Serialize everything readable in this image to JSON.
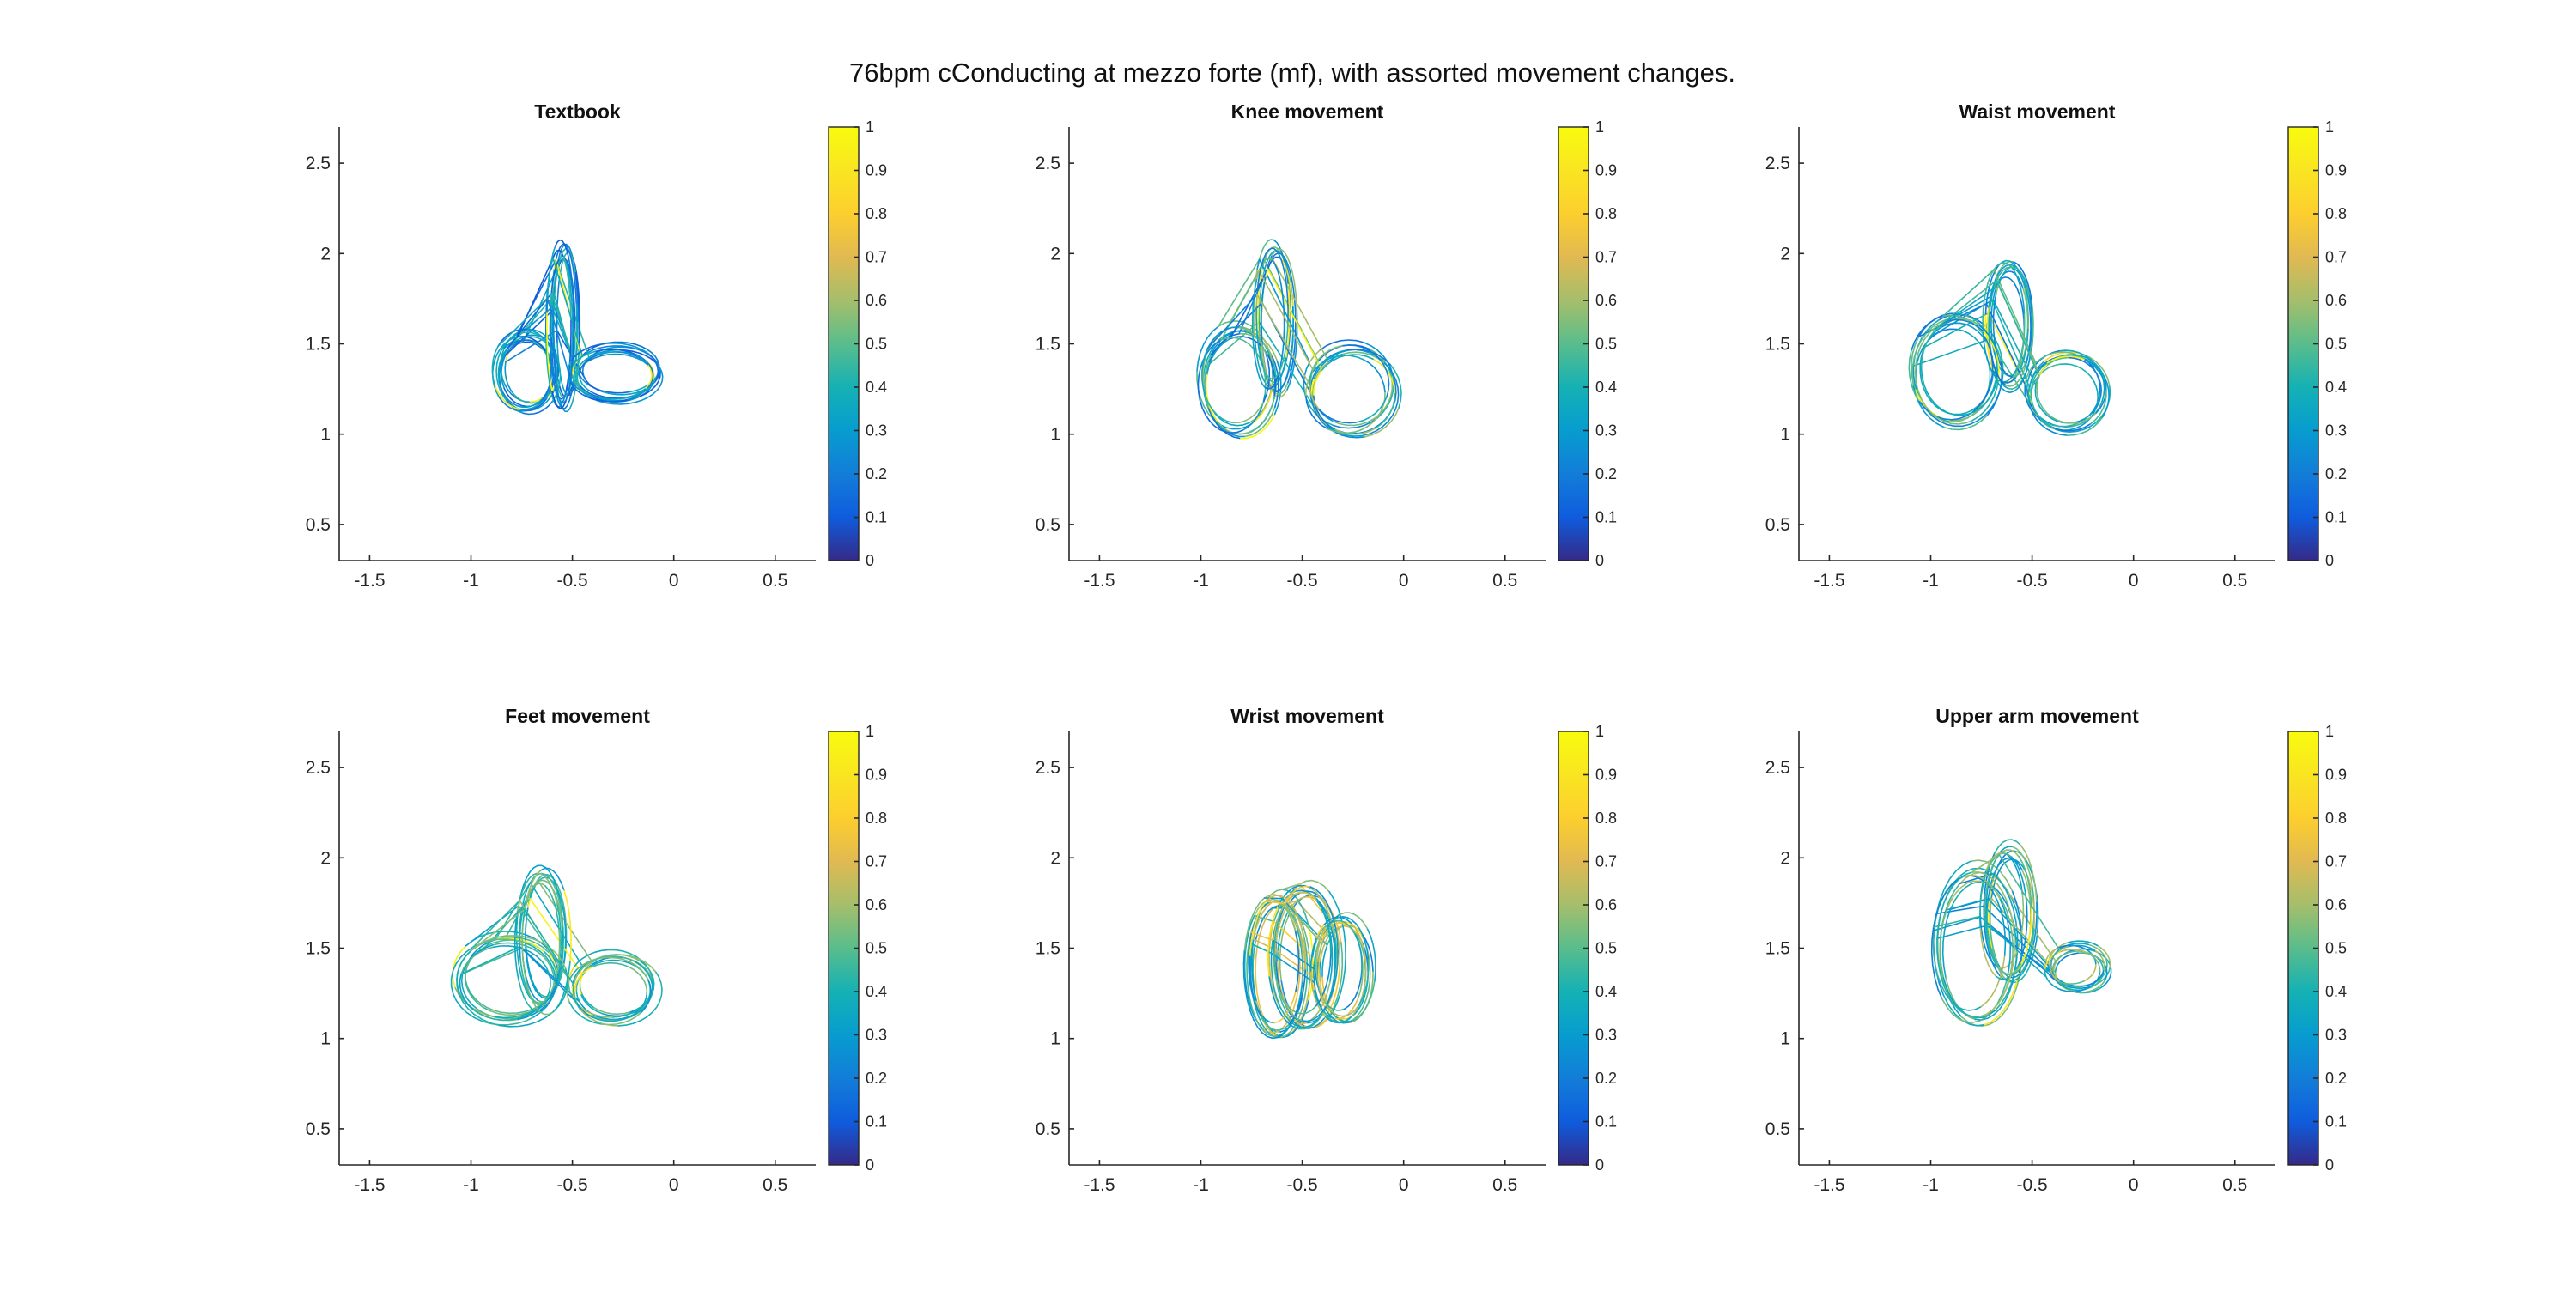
{
  "figure": {
    "suptitle": "76bpm cConducting at mezzo forte (mf), with assorted movement changes."
  },
  "chart_data": [
    {
      "type": "line",
      "title": "Textbook",
      "xlim": [
        -1.65,
        0.7
      ],
      "ylim": [
        0.3,
        2.7
      ],
      "xticks": [
        -1.5,
        -1,
        -0.5,
        0,
        0.5
      ],
      "yticks": [
        0.5,
        1,
        1.5,
        2,
        2.5
      ],
      "grid": false,
      "color_scale": {
        "colormap": "parula",
        "range": [
          0,
          1
        ],
        "ticks": [
          0,
          0.1,
          0.2,
          0.3,
          0.4,
          0.5,
          0.6,
          0.7,
          0.8,
          0.9,
          1
        ]
      },
      "trajectory": {
        "lobes": [
          {
            "cx": -0.72,
            "cy": 1.35,
            "rx": 0.14,
            "ry": 0.2
          },
          {
            "cx": -0.54,
            "cy": 1.6,
            "rx": 0.06,
            "ry": 0.42
          },
          {
            "cx": -0.28,
            "cy": 1.34,
            "rx": 0.2,
            "ry": 0.14
          }
        ],
        "loops": 9,
        "color_mean": 0.27,
        "color_spread": 0.18
      }
    },
    {
      "type": "line",
      "title": "Knee movement",
      "xlim": [
        -1.65,
        0.7
      ],
      "ylim": [
        0.3,
        2.7
      ],
      "xticks": [
        -1.5,
        -1,
        -0.5,
        0,
        0.5
      ],
      "yticks": [
        0.5,
        1,
        1.5,
        2,
        2.5
      ],
      "grid": false,
      "color_scale": {
        "colormap": "parula",
        "range": [
          0,
          1
        ],
        "ticks": [
          0,
          0.1,
          0.2,
          0.3,
          0.4,
          0.5,
          0.6,
          0.7,
          0.8,
          0.9,
          1
        ]
      },
      "trajectory": {
        "lobes": [
          {
            "cx": -0.82,
            "cy": 1.3,
            "rx": 0.17,
            "ry": 0.27
          },
          {
            "cx": -0.64,
            "cy": 1.64,
            "rx": 0.08,
            "ry": 0.37
          },
          {
            "cx": -0.26,
            "cy": 1.25,
            "rx": 0.2,
            "ry": 0.22
          }
        ],
        "loops": 8,
        "color_mean": 0.38,
        "color_spread": 0.24
      }
    },
    {
      "type": "line",
      "title": "Waist movement",
      "xlim": [
        -1.65,
        0.7
      ],
      "ylim": [
        0.3,
        2.7
      ],
      "xticks": [
        -1.5,
        -1,
        -0.5,
        0,
        0.5
      ],
      "yticks": [
        0.5,
        1,
        1.5,
        2,
        2.5
      ],
      "grid": false,
      "color_scale": {
        "colormap": "parula",
        "range": [
          0,
          1
        ],
        "ticks": [
          0,
          0.1,
          0.2,
          0.3,
          0.4,
          0.5,
          0.6,
          0.7,
          0.8,
          0.9,
          1
        ]
      },
      "trajectory": {
        "lobes": [
          {
            "cx": -0.88,
            "cy": 1.35,
            "rx": 0.2,
            "ry": 0.28
          },
          {
            "cx": -0.62,
            "cy": 1.6,
            "rx": 0.1,
            "ry": 0.32
          },
          {
            "cx": -0.33,
            "cy": 1.23,
            "rx": 0.18,
            "ry": 0.2
          }
        ],
        "loops": 8,
        "color_mean": 0.36,
        "color_spread": 0.2
      }
    },
    {
      "type": "line",
      "title": "Feet movement",
      "xlim": [
        -1.65,
        0.7
      ],
      "ylim": [
        0.3,
        2.7
      ],
      "xticks": [
        -1.5,
        -1,
        -0.5,
        0,
        0.5
      ],
      "yticks": [
        0.5,
        1,
        1.5,
        2,
        2.5
      ],
      "grid": false,
      "color_scale": {
        "colormap": "parula",
        "range": [
          0,
          1
        ],
        "ticks": [
          0,
          0.1,
          0.2,
          0.3,
          0.4,
          0.5,
          0.6,
          0.7,
          0.8,
          0.9,
          1
        ]
      },
      "trajectory": {
        "lobes": [
          {
            "cx": -0.82,
            "cy": 1.33,
            "rx": 0.25,
            "ry": 0.23
          },
          {
            "cx": -0.65,
            "cy": 1.55,
            "rx": 0.11,
            "ry": 0.37
          },
          {
            "cx": -0.3,
            "cy": 1.28,
            "rx": 0.2,
            "ry": 0.18
          }
        ],
        "loops": 8,
        "color_mean": 0.42,
        "color_spread": 0.16
      }
    },
    {
      "type": "line",
      "title": "Wrist movement",
      "xlim": [
        -1.65,
        0.7
      ],
      "ylim": [
        0.3,
        2.7
      ],
      "xticks": [
        -1.5,
        -1,
        -0.5,
        0,
        0.5
      ],
      "yticks": [
        0.5,
        1,
        1.5,
        2,
        2.5
      ],
      "grid": false,
      "color_scale": {
        "colormap": "parula",
        "range": [
          0,
          1
        ],
        "ticks": [
          0,
          0.1,
          0.2,
          0.3,
          0.4,
          0.5,
          0.6,
          0.7,
          0.8,
          0.9,
          1
        ]
      },
      "trajectory": {
        "lobes": [
          {
            "cx": -0.62,
            "cy": 1.4,
            "rx": 0.14,
            "ry": 0.38
          },
          {
            "cx": -0.48,
            "cy": 1.45,
            "rx": 0.16,
            "ry": 0.38
          },
          {
            "cx": -0.3,
            "cy": 1.38,
            "rx": 0.13,
            "ry": 0.28
          }
        ],
        "loops": 9,
        "color_mean": 0.5,
        "color_spread": 0.3
      }
    },
    {
      "type": "line",
      "title": "Upper arm movement",
      "xlim": [
        -1.65,
        0.7
      ],
      "ylim": [
        0.3,
        2.7
      ],
      "xticks": [
        -1.5,
        -1,
        -0.5,
        0,
        0.5
      ],
      "yticks": [
        0.5,
        1,
        1.5,
        2,
        2.5
      ],
      "grid": false,
      "color_scale": {
        "colormap": "parula",
        "range": [
          0,
          1
        ],
        "ticks": [
          0,
          0.1,
          0.2,
          0.3,
          0.4,
          0.5,
          0.6,
          0.7,
          0.8,
          0.9,
          1
        ]
      },
      "trajectory": {
        "lobes": [
          {
            "cx": -0.78,
            "cy": 1.5,
            "rx": 0.2,
            "ry": 0.42
          },
          {
            "cx": -0.62,
            "cy": 1.68,
            "rx": 0.12,
            "ry": 0.36
          },
          {
            "cx": -0.28,
            "cy": 1.38,
            "rx": 0.14,
            "ry": 0.12
          }
        ],
        "loops": 8,
        "color_mean": 0.42,
        "color_spread": 0.22
      }
    }
  ]
}
